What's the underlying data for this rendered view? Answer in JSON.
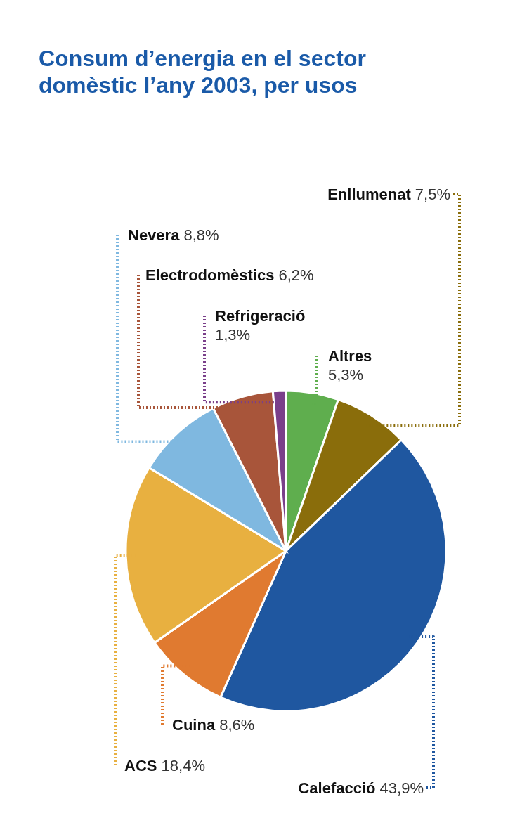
{
  "chart_data": {
    "type": "pie",
    "title": "Consum d’energia en el sector domèstic l’any 2003, per usos",
    "categories": [
      "Altres",
      "Enllumenat",
      "Calefacció",
      "Cuina",
      "ACS",
      "Nevera",
      "Electrodomèstics",
      "Refrigeració"
    ],
    "values": [
      5.3,
      7.5,
      43.9,
      8.6,
      18.4,
      8.8,
      6.2,
      1.3
    ],
    "colors": [
      "#5fae4e",
      "#8a6d0b",
      "#1f57a0",
      "#e07a30",
      "#e8b040",
      "#7fb8e0",
      "#a8553a",
      "#7a3f8a"
    ],
    "value_labels": [
      "5,3%",
      "7,5%",
      "43,9%",
      "8,6%",
      "18,4%",
      "8,8%",
      "6,2%",
      "1,3%"
    ]
  }
}
